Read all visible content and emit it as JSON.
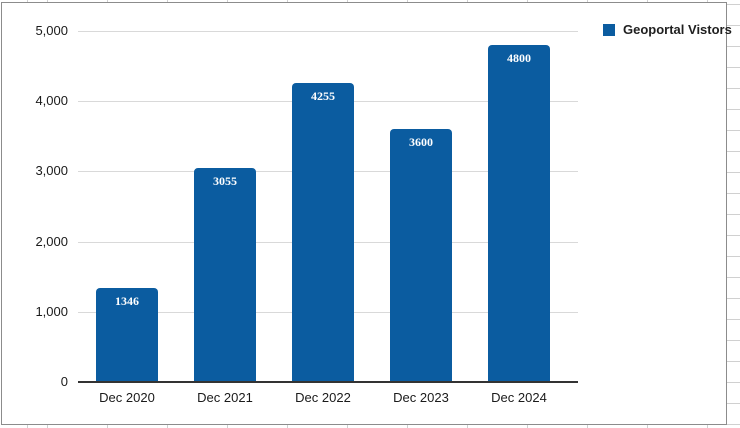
{
  "chart_data": {
    "type": "bar",
    "title": "",
    "xlabel": "",
    "ylabel": "",
    "categories": [
      "Dec 2020",
      "Dec 2021",
      "Dec 2022",
      "Dec 2023",
      "Dec 2024"
    ],
    "series": [
      {
        "name": "Geoportal Vistors",
        "values": [
          1346,
          3055,
          4255,
          3600,
          4800
        ]
      }
    ],
    "bar_value_labels": [
      "1346",
      "3055",
      "4255",
      "3600",
      "4800"
    ],
    "ylim": [
      0,
      5000
    ],
    "ytick_interval": 1000,
    "ytick_labels": [
      "0",
      "1,000",
      "2,000",
      "3,000",
      "4,000",
      "5,000"
    ],
    "grid": true,
    "legend_position": "top-right"
  },
  "legend": {
    "label": "Geoportal Vistors"
  },
  "colors": {
    "bar": "#0b5ca0",
    "bar_label_text": "#ffffff",
    "gridline": "#d9d9d9",
    "axis_line": "#333333",
    "tick_text": "#1a1a1a",
    "frame_border": "#8c8c8c",
    "sheet_gridline": "#d0d0d0",
    "background": "#ffffff"
  }
}
